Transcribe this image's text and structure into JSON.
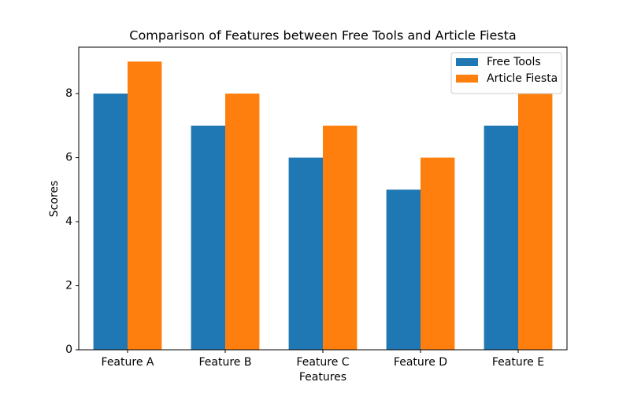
{
  "chart_data": {
    "type": "grouped-bar",
    "title": "Comparison of Features between Free Tools and Article Fiesta",
    "x_label": "Features",
    "y_label": "Scores",
    "categories": [
      "Feature A",
      "Feature B",
      "Feature C",
      "Feature D",
      "Feature E"
    ],
    "series": [
      {
        "name": "Free Tools",
        "color": "#1f77b4",
        "values": [
          8,
          7,
          6,
          5,
          7
        ]
      },
      {
        "name": "Article Fiesta",
        "color": "#ff7f0e",
        "values": [
          9,
          8,
          7,
          6,
          8
        ]
      }
    ],
    "ylim": [
      0,
      9.45
    ],
    "yticks": [
      0,
      2,
      4,
      6,
      8
    ],
    "legend": "upper right",
    "grid": false
  }
}
